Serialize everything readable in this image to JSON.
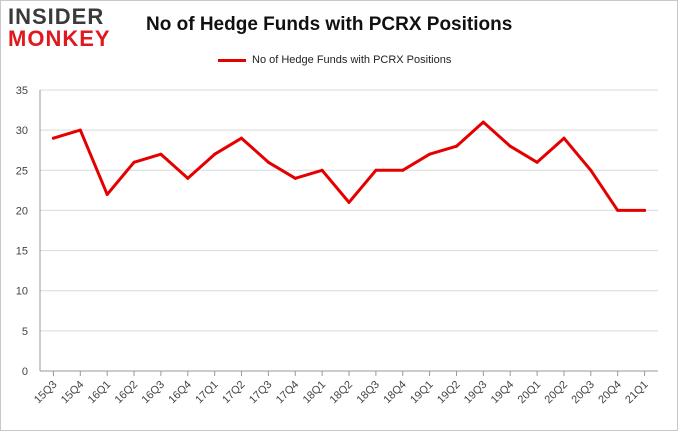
{
  "logo": {
    "line1": "INSIDER",
    "line2": "MONKEY"
  },
  "colors": {
    "series": "#e50000",
    "grid": "#d9d9d9",
    "axis": "#999999"
  },
  "chart_data": {
    "type": "line",
    "title": "No of Hedge Funds with PCRX Positions",
    "xlabel": "",
    "ylabel": "",
    "ylim": [
      0,
      35
    ],
    "yticks": [
      0,
      5,
      10,
      15,
      20,
      25,
      30,
      35
    ],
    "grid": true,
    "legend_position": "top-center",
    "categories": [
      "15Q3",
      "15Q4",
      "16Q1",
      "16Q2",
      "16Q3",
      "16Q4",
      "17Q1",
      "17Q2",
      "17Q3",
      "17Q4",
      "18Q1",
      "18Q2",
      "18Q3",
      "18Q4",
      "19Q1",
      "19Q2",
      "19Q3",
      "19Q4",
      "20Q1",
      "20Q2",
      "20Q3",
      "20Q4",
      "21Q1"
    ],
    "series": [
      {
        "name": "No of Hedge Funds with PCRX Positions",
        "values": [
          29,
          30,
          22,
          26,
          27,
          24,
          27,
          29,
          26,
          24,
          25,
          21,
          25,
          25,
          27,
          28,
          31,
          28,
          26,
          29,
          25,
          20,
          20
        ]
      }
    ]
  }
}
